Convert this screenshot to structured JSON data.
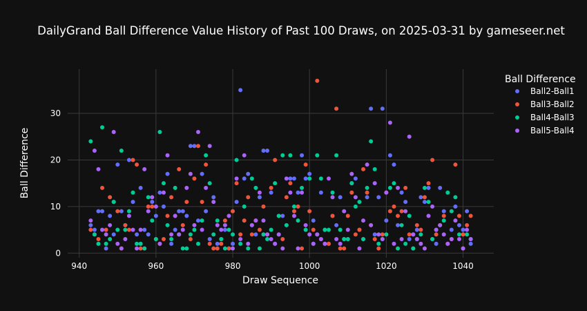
{
  "chart_data": {
    "type": "scatter",
    "title": "DailyGrand Ball Difference Value History of Past 100 Draws, on 2025-03-31 by gameseer.net",
    "xlabel": "Draw Sequence",
    "ylabel": "Ball Difference",
    "xlim": [
      937,
      1048
    ],
    "ylim": [
      -1,
      39.5
    ],
    "xticks": [
      940,
      960,
      980,
      1000,
      1020,
      1040
    ],
    "yticks": [
      0,
      10,
      20,
      30
    ],
    "grid": true,
    "legend_title": "Ball Difference",
    "legend_position": "right",
    "series": [
      {
        "name": "Ball2-Ball1",
        "color": "#636efa",
        "x": [
          943,
          944,
          945,
          946,
          947,
          948,
          949,
          950,
          951,
          952,
          953,
          954,
          955,
          956,
          957,
          958,
          959,
          960,
          961,
          962,
          963,
          964,
          965,
          966,
          967,
          968,
          969,
          970,
          971,
          972,
          973,
          974,
          975,
          976,
          977,
          978,
          979,
          980,
          981,
          982,
          983,
          984,
          985,
          986,
          987,
          988,
          989,
          990,
          991,
          992,
          993,
          994,
          995,
          996,
          997,
          998,
          999,
          1000,
          1001,
          1002,
          1003,
          1004,
          1005,
          1006,
          1007,
          1008,
          1009,
          1010,
          1011,
          1012,
          1013,
          1014,
          1015,
          1016,
          1017,
          1018,
          1019,
          1020,
          1021,
          1022,
          1023,
          1024,
          1025,
          1026,
          1027,
          1028,
          1029,
          1030,
          1031,
          1032,
          1033,
          1034,
          1035,
          1036,
          1037,
          1038,
          1039,
          1040,
          1041,
          1042
        ],
        "y": [
          6,
          5,
          9,
          9,
          1,
          8,
          4,
          19,
          9,
          6,
          20,
          11,
          4,
          14,
          5,
          4,
          11,
          8,
          13,
          10,
          17,
          2,
          5,
          9,
          9,
          8,
          23,
          23,
          7,
          17,
          9,
          3,
          12,
          2,
          3,
          5,
          1,
          2,
          11,
          35,
          16,
          17,
          6,
          4,
          12,
          22,
          22,
          13,
          2,
          4,
          8,
          6,
          16,
          16,
          13,
          21,
          16,
          17,
          7,
          4,
          13,
          2,
          2,
          8,
          6,
          12,
          3,
          3,
          15,
          16,
          5,
          3,
          12,
          31,
          4,
          12,
          31,
          7,
          21,
          19,
          6,
          13,
          11,
          3,
          4,
          5,
          12,
          11,
          14,
          3,
          2,
          14,
          9,
          2,
          5,
          10,
          6,
          5,
          9,
          2
        ]
      },
      {
        "name": "Ball3-Ball2",
        "color": "#ef553b",
        "x": [
          943,
          944,
          945,
          946,
          947,
          948,
          949,
          950,
          951,
          952,
          953,
          954,
          955,
          956,
          957,
          958,
          959,
          960,
          961,
          962,
          963,
          964,
          965,
          966,
          967,
          968,
          969,
          970,
          971,
          972,
          973,
          974,
          975,
          976,
          977,
          978,
          979,
          980,
          981,
          982,
          983,
          984,
          985,
          986,
          987,
          988,
          989,
          990,
          991,
          992,
          993,
          994,
          995,
          996,
          997,
          998,
          999,
          1000,
          1001,
          1002,
          1003,
          1004,
          1005,
          1006,
          1007,
          1008,
          1009,
          1010,
          1011,
          1012,
          1013,
          1014,
          1015,
          1016,
          1017,
          1018,
          1019,
          1020,
          1021,
          1022,
          1023,
          1024,
          1025,
          1026,
          1027,
          1028,
          1029,
          1030,
          1031,
          1032,
          1033,
          1034,
          1035,
          1036,
          1037,
          1038,
          1039,
          1040,
          1041,
          1042
        ],
        "y": [
          5,
          4,
          3,
          14,
          5,
          12,
          11,
          9,
          1,
          6,
          5,
          20,
          19,
          1,
          1,
          10,
          10,
          3,
          2,
          3,
          8,
          12,
          8,
          18,
          6,
          11,
          3,
          16,
          23,
          11,
          19,
          2,
          1,
          1,
          2,
          7,
          1,
          9,
          15,
          4,
          7,
          12,
          4,
          7,
          5,
          10,
          4,
          14,
          20,
          8,
          3,
          12,
          15,
          9,
          10,
          1,
          19,
          9,
          5,
          37,
          3,
          5,
          2,
          8,
          31,
          1,
          1,
          8,
          13,
          4,
          5,
          18,
          13,
          6,
          3,
          1,
          4,
          13,
          9,
          10,
          8,
          9,
          14,
          4,
          1,
          6,
          5,
          12,
          15,
          20,
          4,
          6,
          8,
          2,
          3,
          19,
          8,
          4,
          6,
          8
        ]
      },
      {
        "name": "Ball4-Ball3",
        "color": "#00cc96",
        "x": [
          943,
          944,
          945,
          946,
          947,
          948,
          949,
          950,
          951,
          952,
          953,
          954,
          955,
          956,
          957,
          958,
          959,
          960,
          961,
          962,
          963,
          964,
          965,
          966,
          967,
          968,
          969,
          970,
          971,
          972,
          973,
          974,
          975,
          976,
          977,
          978,
          979,
          980,
          981,
          982,
          983,
          984,
          985,
          986,
          987,
          988,
          989,
          990,
          991,
          992,
          993,
          994,
          995,
          996,
          997,
          998,
          999,
          1000,
          1001,
          1002,
          1003,
          1004,
          1005,
          1006,
          1007,
          1008,
          1009,
          1010,
          1011,
          1012,
          1013,
          1014,
          1015,
          1016,
          1017,
          1018,
          1019,
          1020,
          1021,
          1022,
          1023,
          1024,
          1025,
          1026,
          1027,
          1028,
          1029,
          1030,
          1031,
          1032,
          1033,
          1034,
          1035,
          1036,
          1037,
          1038,
          1039,
          1040,
          1041,
          1042
        ],
        "y": [
          24,
          4,
          2,
          27,
          2,
          3,
          11,
          5,
          22,
          5,
          9,
          13,
          2,
          2,
          1,
          12,
          7,
          3,
          26,
          15,
          6,
          3,
          14,
          4,
          1,
          1,
          4,
          5,
          2,
          7,
          21,
          15,
          4,
          7,
          3,
          1,
          5,
          4,
          20,
          2,
          10,
          1,
          16,
          14,
          1,
          4,
          3,
          5,
          15,
          8,
          21,
          6,
          21,
          10,
          7,
          14,
          5,
          16,
          2,
          21,
          16,
          5,
          5,
          13,
          21,
          5,
          3,
          3,
          15,
          10,
          11,
          3,
          14,
          24,
          18,
          2,
          3,
          4,
          14,
          15,
          1,
          6,
          2,
          8,
          1,
          3,
          4,
          14,
          11,
          3,
          5,
          6,
          7,
          13,
          9,
          12,
          4,
          1,
          4,
          3
        ]
      },
      {
        "name": "Ball5-Ball4",
        "color": "#ab63fa",
        "x": [
          943,
          944,
          945,
          946,
          947,
          948,
          949,
          950,
          951,
          952,
          953,
          954,
          955,
          956,
          957,
          958,
          959,
          960,
          961,
          962,
          963,
          964,
          965,
          966,
          967,
          968,
          969,
          970,
          971,
          972,
          973,
          974,
          975,
          976,
          977,
          978,
          979,
          980,
          981,
          982,
          983,
          984,
          985,
          986,
          987,
          988,
          989,
          990,
          991,
          992,
          993,
          994,
          995,
          996,
          997,
          998,
          999,
          1000,
          1001,
          1002,
          1003,
          1004,
          1005,
          1006,
          1007,
          1008,
          1009,
          1010,
          1011,
          1012,
          1013,
          1014,
          1015,
          1016,
          1017,
          1018,
          1019,
          1020,
          1021,
          1022,
          1023,
          1024,
          1025,
          1026,
          1027,
          1028,
          1029,
          1030,
          1031,
          1032,
          1033,
          1034,
          1035,
          1036,
          1037,
          1038,
          1039,
          1040,
          1041,
          1042
        ],
        "y": [
          7,
          22,
          18,
          5,
          4,
          6,
          26,
          2,
          1,
          3,
          8,
          5,
          1,
          5,
          18,
          9,
          12,
          10,
          2,
          13,
          21,
          4,
          8,
          4,
          5,
          14,
          17,
          6,
          26,
          5,
          14,
          23,
          11,
          6,
          5,
          6,
          8,
          1,
          16,
          3,
          21,
          2,
          6,
          7,
          13,
          7,
          4,
          3,
          2,
          4,
          1,
          16,
          13,
          8,
          1,
          13,
          6,
          4,
          2,
          4,
          3,
          2,
          16,
          12,
          3,
          2,
          9,
          5,
          17,
          12,
          1,
          7,
          19,
          6,
          15,
          4,
          3,
          13,
          28,
          2,
          14,
          3,
          9,
          25,
          4,
          3,
          2,
          1,
          8,
          10,
          5,
          6,
          4,
          2,
          3,
          7,
          3,
          1,
          5,
          3
        ]
      }
    ]
  }
}
